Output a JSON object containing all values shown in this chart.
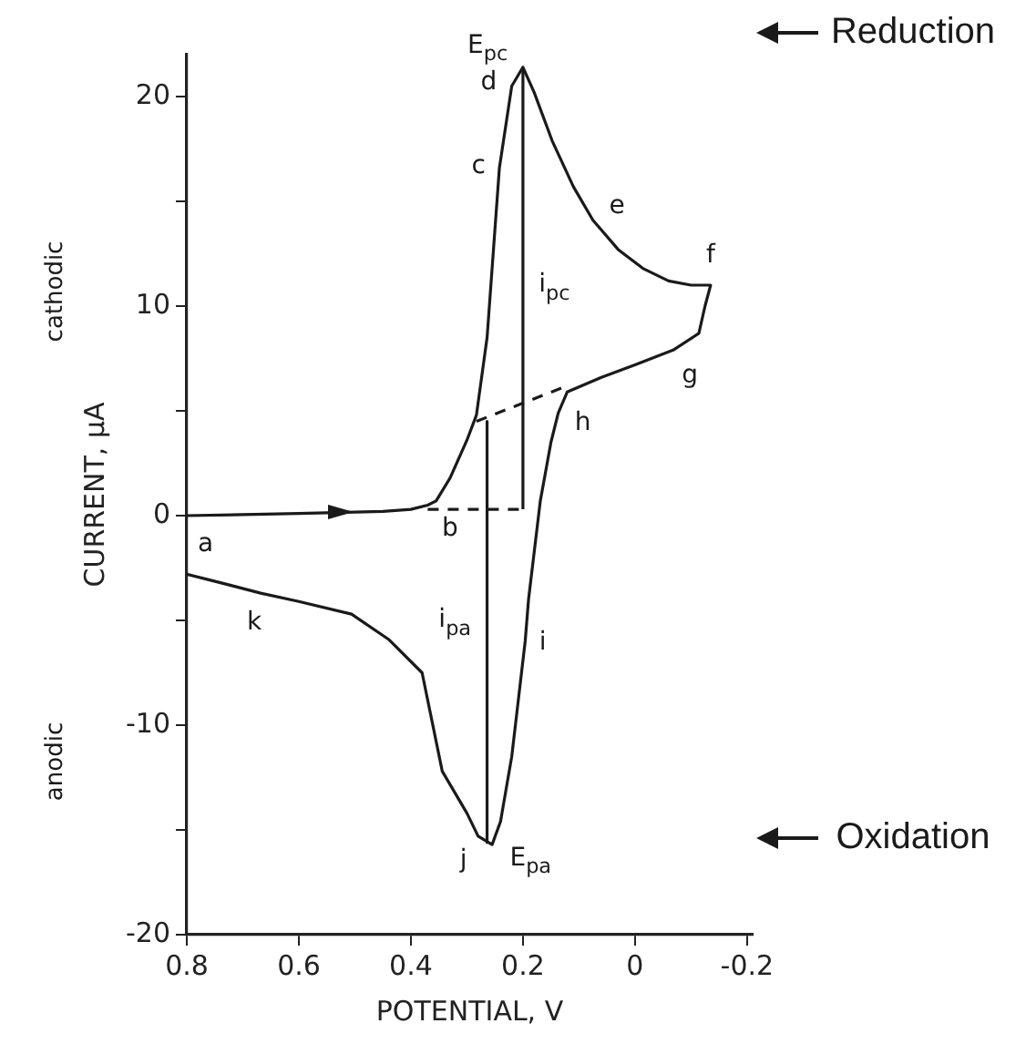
{
  "chart_data": {
    "type": "line",
    "xlabel": "POTENTIAL, V",
    "ylabel": "CURRENT, µA",
    "xlim": [
      0.8,
      -0.21
    ],
    "ylim": [
      -20,
      22
    ],
    "xticks": [
      0.8,
      0.6,
      0.4,
      0.2,
      0,
      -0.2
    ],
    "yticks": [
      -20,
      {
        "value": -15,
        "label": null
      },
      -10,
      {
        "value": -5,
        "label": null
      },
      0,
      {
        "value": 5,
        "label": null
      },
      10,
      {
        "value": 15,
        "label": null
      },
      20
    ],
    "grid": false,
    "legend": false,
    "marker": "none",
    "series": [
      {
        "color": "#1a1a1a",
        "line_style": "solid",
        "x": [
          0.8,
          0.6,
          0.45,
          0.4,
          0.37,
          0.355,
          0.33,
          0.3,
          0.283,
          0.264,
          0.242,
          0.22,
          0.2,
          0.18,
          0.148,
          0.11,
          0.075,
          0.03,
          -0.014,
          -0.06,
          -0.1,
          -0.135,
          -0.125,
          -0.114,
          -0.068,
          0.0,
          0.06,
          0.121,
          0.137,
          0.15,
          0.169,
          0.19,
          0.196,
          0.22,
          0.24,
          0.255,
          0.28,
          0.3,
          0.344,
          0.38,
          0.44,
          0.506,
          0.6,
          0.668,
          0.74,
          0.8
        ],
        "values": [
          0,
          0.1,
          0.2,
          0.3,
          0.5,
          0.7,
          1.8,
          3.6,
          4.8,
          8.5,
          16.6,
          20.5,
          21.4,
          20.2,
          17.9,
          15.7,
          14.1,
          12.7,
          11.8,
          11.2,
          11.0,
          11.0,
          10.0,
          8.7,
          7.9,
          7.2,
          6.6,
          5.9,
          4.9,
          3.5,
          0.7,
          -4.0,
          -6.0,
          -11.5,
          -14.6,
          -15.7,
          -15.3,
          -14.2,
          -12.2,
          -7.5,
          -5.9,
          -4.7,
          -4.1,
          -3.7,
          -3.2,
          -2.8
        ]
      },
      {
        "color": "#1a1a1a",
        "line_style": "dashed",
        "x": [
          0.37,
          0.2
        ],
        "values": [
          0.3,
          0.3
        ]
      },
      {
        "color": "#1a1a1a",
        "line_style": "dashed",
        "x": [
          0.283,
          0.13
        ],
        "values": [
          4.5,
          6.1
        ]
      },
      {
        "color": "#1a1a1a",
        "line_style": "solid",
        "x": [
          0.2,
          0.2
        ],
        "values": [
          0.3,
          21.4
        ]
      },
      {
        "color": "#1a1a1a",
        "line_style": "solid",
        "x": [
          0.264,
          0.264
        ],
        "values": [
          4.5,
          -15.6
        ]
      }
    ],
    "annotations": [
      "cathodic",
      "anodic",
      "Reduction",
      "Oxidation",
      {
        "text": "a",
        "x": 0.8,
        "y": 0
      },
      {
        "text": "b",
        "x": 0.355,
        "y": 0.7
      },
      {
        "text": "c",
        "x": 0.242,
        "y": 16.6
      },
      {
        "text": "d",
        "x": 0.22,
        "y": 20.5
      },
      {
        "text": "E$_{pc}$",
        "x": 0.2,
        "y": 21.4
      },
      {
        "text": "e",
        "x": 0.075,
        "y": 14.1
      },
      {
        "text": "f",
        "x": -0.135,
        "y": 11.0
      },
      {
        "text": "g",
        "x": -0.068,
        "y": 7.9
      },
      {
        "text": "h",
        "x": 0.137,
        "y": 4.9
      },
      {
        "text": "i$_{pc}$",
        "x": 0.2,
        "y": 11
      },
      {
        "text": "i$_{pa}$",
        "x": 0.264,
        "y": -5
      },
      {
        "text": "i",
        "x": 0.196,
        "y": -6.0
      },
      {
        "text": "j",
        "x": 0.28,
        "y": -15.3
      },
      {
        "text": "k",
        "x": 0.668,
        "y": -3.7
      },
      {
        "text": "E$_{pa}$",
        "x": 0.255,
        "y": -15.7
      }
    ]
  }
}
